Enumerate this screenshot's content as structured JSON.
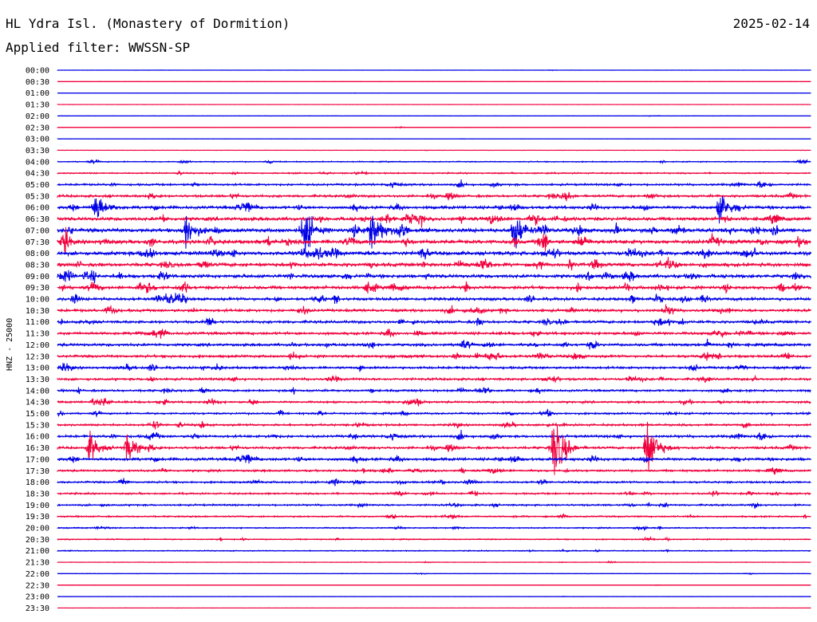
{
  "header": {
    "station": "HL Ydra Isl. (Monastery of Dormition)",
    "date": "2025-02-14",
    "filter": "Applied filter: WWSSN-SP"
  },
  "chart_data": {
    "type": "line",
    "title": "HL Ydra Isl. (Monastery of Dormition)",
    "subtitle": "Applied filter: WWSSN-SP",
    "ylabel": "HNZ - 25000",
    "xlabel": "",
    "grid": false,
    "trace_colors": [
      "#0000e6",
      "#f0003c"
    ],
    "rows": [
      "00:00",
      "00:30",
      "01:00",
      "01:30",
      "02:00",
      "02:30",
      "03:00",
      "03:30",
      "04:00",
      "04:30",
      "05:00",
      "05:30",
      "06:00",
      "06:30",
      "07:00",
      "07:30",
      "08:00",
      "08:30",
      "09:00",
      "09:30",
      "10:00",
      "10:30",
      "11:00",
      "11:30",
      "12:00",
      "12:30",
      "13:00",
      "13:30",
      "14:00",
      "14:30",
      "15:00",
      "15:30",
      "16:00",
      "16:30",
      "17:00",
      "17:30",
      "18:00",
      "18:30",
      "19:00",
      "19:30",
      "20:00",
      "20:30",
      "21:00",
      "21:30",
      "22:00",
      "22:30",
      "23:00",
      "23:30"
    ],
    "noise_level": [
      0.2,
      0.2,
      0.2,
      0.2,
      0.3,
      0.3,
      0.2,
      0.3,
      0.9,
      1.1,
      1.6,
      1.9,
      2.3,
      2.6,
      3.0,
      3.0,
      3.0,
      2.8,
      2.7,
      2.6,
      2.3,
      2.1,
      2.1,
      2.1,
      2.1,
      2.0,
      1.9,
      1.8,
      1.7,
      1.6,
      1.5,
      1.7,
      2.0,
      1.9,
      2.2,
      1.6,
      1.5,
      1.4,
      1.4,
      1.2,
      1.0,
      0.9,
      0.8,
      0.5,
      0.4,
      0.3,
      0.3,
      0.2
    ],
    "events": [
      {
        "row": 12,
        "minute": 1.5,
        "amplitude": 32
      },
      {
        "row": 14,
        "minute": 5.1,
        "amplitude": 34
      },
      {
        "row": 14,
        "minute": 9.8,
        "amplitude": 40
      },
      {
        "row": 14,
        "minute": 12.5,
        "amplitude": 44
      },
      {
        "row": 14,
        "minute": 18.2,
        "amplitude": 40
      },
      {
        "row": 12,
        "minute": 26.4,
        "amplitude": 30
      },
      {
        "row": 33,
        "minute": 1.3,
        "amplitude": 26
      },
      {
        "row": 33,
        "minute": 2.8,
        "amplitude": 28
      },
      {
        "row": 33,
        "minute": 19.8,
        "amplitude": 60
      },
      {
        "row": 33,
        "minute": 23.5,
        "amplitude": 56
      }
    ]
  }
}
